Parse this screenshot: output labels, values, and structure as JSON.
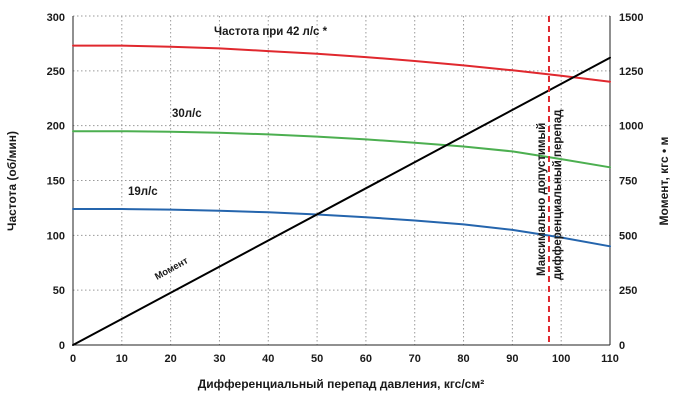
{
  "chart_data": {
    "type": "line",
    "xlabel": "Дифференциальный перепад давления, кгс/см²",
    "ylabel_left": "Частота (об/мин)",
    "ylabel_right": "Момент, кгс • м",
    "xlim": [
      0,
      110
    ],
    "ylim_left": [
      0,
      300
    ],
    "ylim_right": [
      0,
      1500
    ],
    "x_ticks": [
      0,
      10,
      20,
      30,
      40,
      50,
      60,
      70,
      80,
      90,
      100,
      110
    ],
    "y_left_ticks": [
      0,
      50,
      100,
      150,
      200,
      250,
      300
    ],
    "y_right_ticks": [
      0,
      250,
      500,
      750,
      1000,
      1250,
      1500
    ],
    "grid": true,
    "series": [
      {
        "name": "Частота при  42 л/с *",
        "axis": "left",
        "color": "#e0282e",
        "x": [
          0,
          10,
          20,
          30,
          40,
          50,
          60,
          70,
          80,
          90,
          100,
          110
        ],
        "y": [
          273,
          273,
          272,
          270.5,
          268,
          265.5,
          262.5,
          259,
          255,
          250.5,
          245.5,
          240
        ]
      },
      {
        "name": "30л/с",
        "axis": "left",
        "color": "#4caf50",
        "x": [
          0,
          10,
          20,
          30,
          40,
          50,
          60,
          70,
          80,
          90,
          100,
          110
        ],
        "y": [
          195,
          195,
          194.5,
          193.5,
          192,
          190,
          187.5,
          184.5,
          181,
          176.5,
          169.5,
          162
        ]
      },
      {
        "name": "19л/с",
        "axis": "left",
        "color": "#2565ad",
        "x": [
          0,
          10,
          20,
          30,
          40,
          50,
          60,
          70,
          80,
          90,
          100,
          110
        ],
        "y": [
          124,
          124,
          123.5,
          122.5,
          121,
          119,
          116.5,
          113.5,
          110,
          105,
          98,
          90
        ]
      },
      {
        "name": "Момент",
        "axis": "right",
        "color": "#000000",
        "x": [
          0,
          110
        ],
        "y": [
          0,
          1310
        ]
      }
    ],
    "vline": {
      "x": 97.5,
      "color": "#e0282e",
      "label_line1": "Максимально допустимый",
      "label_line2": "дифференциальный перепад"
    }
  }
}
